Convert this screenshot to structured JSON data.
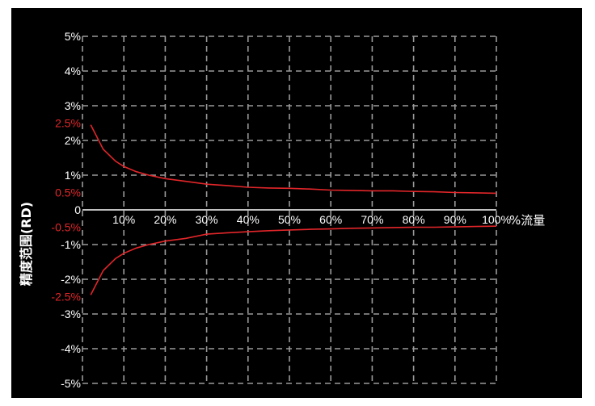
{
  "chart_data": {
    "type": "line",
    "title": "",
    "xlabel": "%流量",
    "ylabel": "精度范围(RD)",
    "xlim": [
      0,
      100
    ],
    "ylim": [
      -5,
      5
    ],
    "grid": true,
    "x_ticks": [
      "10%",
      "20%",
      "30%",
      "40%",
      "50%",
      "60%",
      "70%",
      "80%",
      "90%",
      "100%"
    ],
    "y_ticks": [
      {
        "value": 5,
        "label": "5%"
      },
      {
        "value": 4,
        "label": "4%"
      },
      {
        "value": 3,
        "label": "3%"
      },
      {
        "value": 2,
        "label": "2%"
      },
      {
        "value": 1,
        "label": "1%"
      },
      {
        "value": 0,
        "label": "0"
      },
      {
        "value": -1,
        "label": "-1%"
      },
      {
        "value": -2,
        "label": "-2%"
      },
      {
        "value": -3,
        "label": "-3%"
      },
      {
        "value": -4,
        "label": "-4%"
      },
      {
        "value": -5,
        "label": "-5%"
      }
    ],
    "annotations": [
      {
        "value": 2.5,
        "label": "2.5%"
      },
      {
        "value": 0.5,
        "label": "0.5%"
      },
      {
        "value": -0.5,
        "label": "-0.5%"
      },
      {
        "value": -2.5,
        "label": "-2.5%"
      }
    ],
    "series": [
      {
        "x": [
          2,
          5,
          8,
          10,
          13,
          16,
          20,
          25,
          30,
          35,
          40,
          45,
          50,
          55,
          60,
          65,
          70,
          75,
          80,
          85,
          90,
          95,
          100
        ],
        "values": [
          2.45,
          1.75,
          1.4,
          1.25,
          1.1,
          1.0,
          0.9,
          0.82,
          0.74,
          0.7,
          0.65,
          0.63,
          0.62,
          0.6,
          0.57,
          0.56,
          0.55,
          0.55,
          0.53,
          0.52,
          0.5,
          0.49,
          0.48
        ]
      },
      {
        "x": [
          2,
          5,
          8,
          10,
          13,
          16,
          20,
          25,
          30,
          35,
          40,
          45,
          50,
          55,
          60,
          65,
          70,
          75,
          80,
          85,
          90,
          95,
          100
        ],
        "values": [
          -2.45,
          -1.75,
          -1.4,
          -1.25,
          -1.1,
          -1.0,
          -0.9,
          -0.82,
          -0.7,
          -0.66,
          -0.63,
          -0.6,
          -0.58,
          -0.56,
          -0.55,
          -0.53,
          -0.52,
          -0.51,
          -0.5,
          -0.5,
          -0.49,
          -0.48,
          -0.47
        ]
      }
    ],
    "colors": {
      "background": "#000000",
      "text": "#ffffff",
      "curve": "#e3262a",
      "annotation": "#e3262a",
      "grid": "#9a9a9a"
    }
  }
}
